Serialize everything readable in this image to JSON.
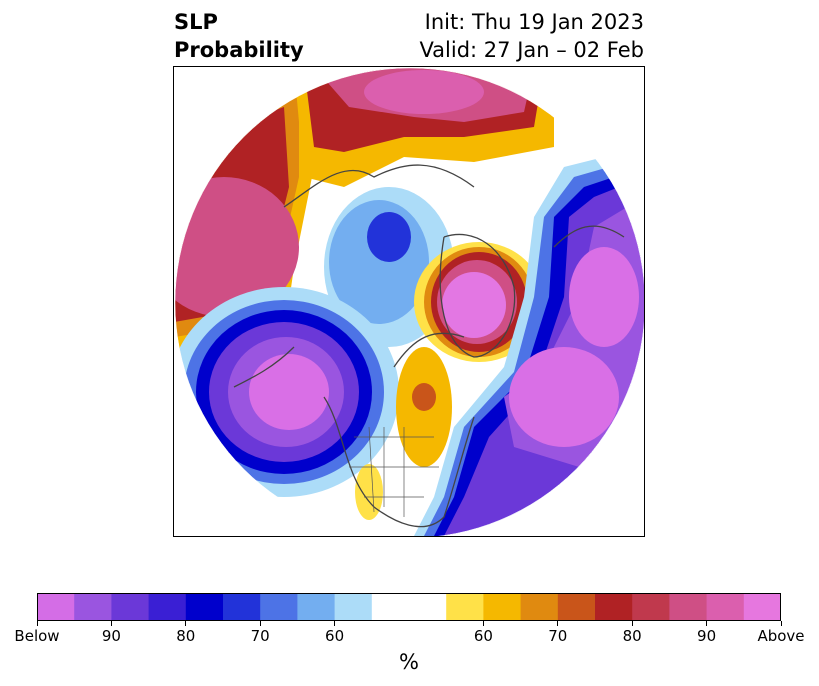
{
  "title": {
    "left_line1": "SLP",
    "left_line2": "Probability",
    "right_line1": "Init: Thu 19 Jan 2023",
    "right_line2": "Valid: 27 Jan – 02 Feb"
  },
  "map": {
    "projection": "north-polar-stereographic",
    "features": [
      "coastlines",
      "country-borders",
      "state-borders"
    ],
    "centers": [
      {
        "name": "north-pacific-low",
        "category": "Below",
        "color": "#d96fe6"
      },
      {
        "name": "greenland-high",
        "category": "Above",
        "color": "#e377e3"
      },
      {
        "name": "north-atlantic-europe-low",
        "category": "Below",
        "color": "#d96fe6"
      },
      {
        "name": "eurasian-arctic-high",
        "category": "Above",
        "color": "#de5aa8"
      },
      {
        "name": "aleutian-asia-high",
        "category": "Above",
        "color": "#cd4f87"
      }
    ]
  },
  "colorbar": {
    "colors": [
      "#d46de6",
      "#9a55e0",
      "#6b38d8",
      "#3a1fd4",
      "#0000cc",
      "#2233d9",
      "#4d73e6",
      "#73aef0",
      "#acdcf8",
      "#ffffff",
      "#ffe148",
      "#f5b800",
      "#e08a10",
      "#c9551a",
      "#b02224",
      "#c0394d",
      "#cf4f85",
      "#db5fae",
      "#e677df"
    ],
    "tick_labels": [
      "Below",
      "90",
      "80",
      "70",
      "60",
      "60",
      "70",
      "80",
      "90",
      "Above"
    ],
    "unit": "%"
  }
}
